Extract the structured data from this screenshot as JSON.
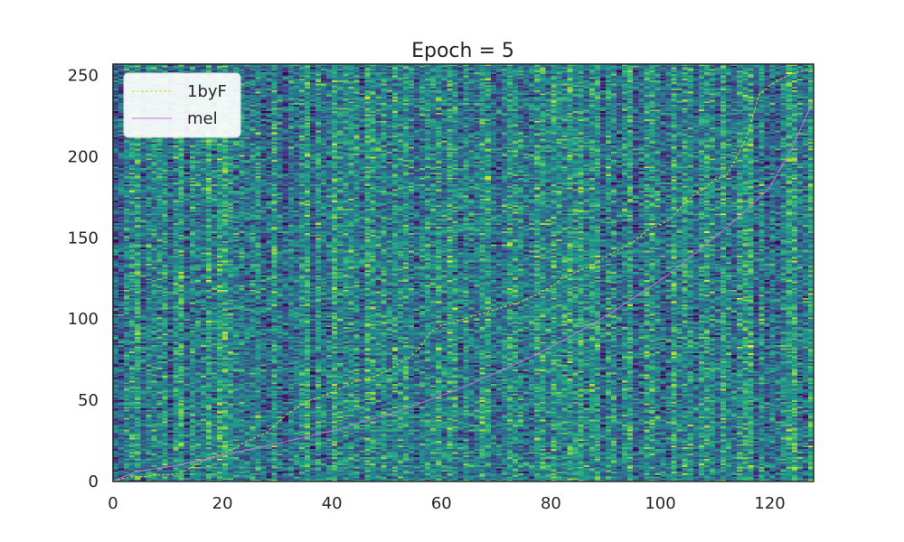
{
  "chart_data": {
    "type": "heatmap",
    "title": "Epoch = 5",
    "xlabel": "",
    "ylabel": "",
    "xlim": [
      0,
      128
    ],
    "ylim": [
      0,
      257
    ],
    "x_ticks": [
      0,
      20,
      40,
      60,
      80,
      100,
      120
    ],
    "y_ticks": [
      0,
      50,
      100,
      150,
      200,
      250
    ],
    "x_tick_labels": [
      "0",
      "20",
      "40",
      "60",
      "80",
      "100",
      "120"
    ],
    "y_tick_labels": [
      "0",
      "50",
      "100",
      "150",
      "200",
      "250"
    ],
    "grid": false,
    "legend_position": "upper-left",
    "colormap": "viridis",
    "heatmap_grid": {
      "columns": 128,
      "rows": 257
    },
    "series": [
      {
        "name": "1byF",
        "line_style": "dashed",
        "color": "#d4d62a",
        "x": [
          0,
          2,
          4,
          6,
          8,
          10,
          12,
          14,
          16,
          18,
          20,
          22,
          24,
          26,
          28,
          30,
          32,
          34,
          36,
          38,
          40,
          42,
          44,
          46,
          48,
          50,
          52,
          54,
          56,
          58,
          60,
          62,
          64,
          66,
          68,
          70,
          72,
          74,
          76,
          78,
          80,
          82,
          84,
          86,
          88,
          90,
          92,
          94,
          96,
          98,
          100,
          102,
          104,
          106,
          108,
          110,
          112,
          114,
          116,
          118,
          120,
          122,
          124,
          126,
          128
        ],
        "y": [
          0,
          2,
          3,
          3,
          4,
          4,
          5,
          8,
          12,
          15,
          17,
          20,
          24,
          27,
          30,
          36,
          42,
          46,
          50,
          52,
          55,
          58,
          61,
          63,
          65,
          68,
          72,
          76,
          82,
          92,
          96,
          98,
          100,
          102,
          104,
          106,
          108,
          110,
          113,
          116,
          120,
          125,
          128,
          131,
          134,
          138,
          142,
          145,
          150,
          156,
          158,
          162,
          170,
          176,
          180,
          186,
          188,
          200,
          214,
          238,
          244,
          248,
          251,
          253,
          254
        ]
      },
      {
        "name": "mel",
        "line_style": "solid",
        "color": "#c777d6",
        "x": [
          0,
          4,
          8,
          12,
          16,
          20,
          24,
          28,
          32,
          36,
          40,
          44,
          48,
          52,
          56,
          60,
          64,
          68,
          72,
          76,
          80,
          84,
          88,
          92,
          96,
          100,
          104,
          108,
          112,
          116,
          120,
          124,
          128
        ],
        "y": [
          0,
          6,
          8,
          10,
          13,
          16,
          19,
          22,
          25,
          28,
          31,
          35,
          39,
          43,
          48,
          53,
          58,
          64,
          70,
          76,
          83,
          90,
          98,
          106,
          115,
          124,
          134,
          145,
          156,
          168,
          181,
          205,
          235
        ]
      }
    ]
  }
}
